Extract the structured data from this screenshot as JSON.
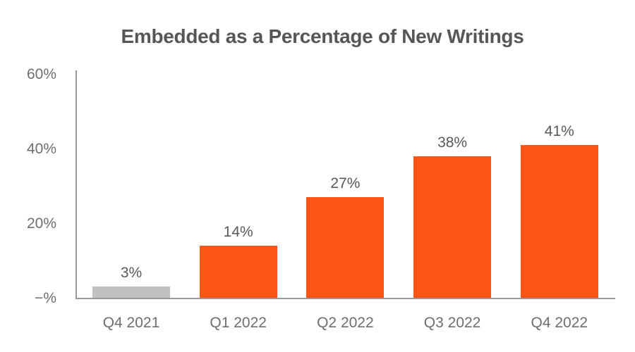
{
  "chart_data": {
    "type": "bar",
    "title": "Embedded as a Percentage of New Writings",
    "categories": [
      "Q4 2021",
      "Q1 2022",
      "Q2 2022",
      "Q3 2022",
      "Q4 2022"
    ],
    "values": [
      3,
      14,
      27,
      38,
      41
    ],
    "value_labels": [
      "3%",
      "14%",
      "27%",
      "38%",
      "41%"
    ],
    "bar_colors": [
      "#C1C1C1",
      "#FB5616",
      "#FB5616",
      "#FB5616",
      "#FB5616"
    ],
    "yticks": [
      {
        "value": 60,
        "label": "60%"
      },
      {
        "value": 40,
        "label": "40%"
      },
      {
        "value": 20,
        "label": "20%"
      },
      {
        "value": 0,
        "label": "−%"
      }
    ],
    "ylim": [
      0,
      60
    ],
    "xlabel": "",
    "ylabel": "",
    "grid": false,
    "legend": false,
    "colors": {
      "bar_orange": "#FB5616",
      "bar_gray": "#C1C1C1",
      "axis_line": "#999999",
      "axis_label_text": "#6D6E71",
      "title_text": "#55565A",
      "data_label_text": "#58595B",
      "background": "#FFFFFF"
    }
  }
}
